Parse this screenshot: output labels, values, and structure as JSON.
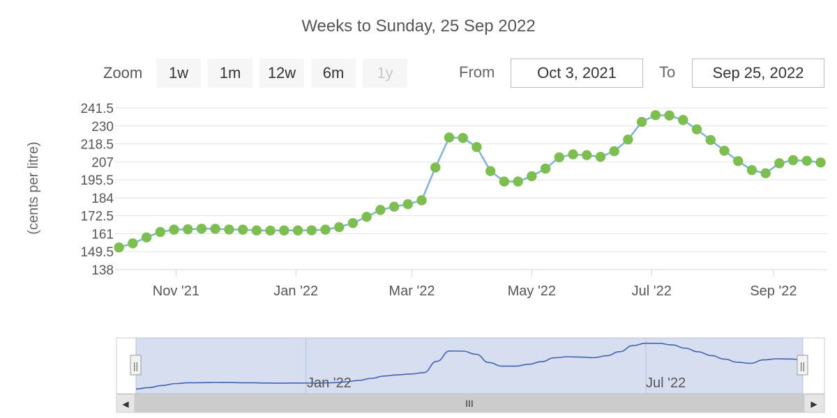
{
  "subtitle": "Weeks to Sunday, 25 Sep 2022",
  "zoom": {
    "label": "Zoom",
    "buttons": [
      {
        "label": "1w",
        "enabled": true
      },
      {
        "label": "1m",
        "enabled": true
      },
      {
        "label": "12w",
        "enabled": true
      },
      {
        "label": "6m",
        "enabled": true
      },
      {
        "label": "1y",
        "enabled": false
      }
    ]
  },
  "range": {
    "from_label": "From",
    "from_value": "Oct 3, 2021",
    "to_label": "To",
    "to_value": "Sep 25, 2022"
  },
  "navigator": {
    "labels": [
      "Jan '22",
      "Jul '22"
    ],
    "scroll_grip": "III",
    "left_arrow": "◀",
    "right_arrow": "▶",
    "handle_glyph": "||"
  },
  "colors": {
    "line": "#7fb2e0",
    "marker": "#7cbf4e",
    "grid": "#e2e2e2",
    "navigator_fill": "#cfd8ec",
    "navigator_line": "#3f63b0"
  },
  "chart_data": {
    "type": "line",
    "ylabel": "(cents per litre)",
    "ylim": [
      138,
      241.5
    ],
    "yticks": [
      138,
      149.5,
      161,
      172.5,
      184,
      195.5,
      207,
      218.5,
      230,
      241.5
    ],
    "xticks": [
      {
        "date": "2021-11-01",
        "label": "Nov '21"
      },
      {
        "date": "2022-01-01",
        "label": "Jan '22"
      },
      {
        "date": "2022-03-01",
        "label": "Mar '22"
      },
      {
        "date": "2022-05-01",
        "label": "May '22"
      },
      {
        "date": "2022-07-01",
        "label": "Jul '22"
      },
      {
        "date": "2022-09-01",
        "label": "Sep '22"
      }
    ],
    "xlim": [
      "2021-10-01",
      "2022-09-28"
    ],
    "grid": true,
    "series": [
      {
        "x": [
          "2021-10-03",
          "2021-10-10",
          "2021-10-17",
          "2021-10-24",
          "2021-10-31",
          "2021-11-07",
          "2021-11-14",
          "2021-11-21",
          "2021-11-28",
          "2021-12-05",
          "2021-12-12",
          "2021-12-19",
          "2021-12-26",
          "2022-01-02",
          "2022-01-09",
          "2022-01-16",
          "2022-01-23",
          "2022-01-30",
          "2022-02-06",
          "2022-02-13",
          "2022-02-20",
          "2022-02-27",
          "2022-03-06",
          "2022-03-13",
          "2022-03-20",
          "2022-03-27",
          "2022-04-03",
          "2022-04-10",
          "2022-04-17",
          "2022-04-24",
          "2022-05-01",
          "2022-05-08",
          "2022-05-15",
          "2022-05-22",
          "2022-05-29",
          "2022-06-05",
          "2022-06-12",
          "2022-06-19",
          "2022-06-26",
          "2022-07-03",
          "2022-07-10",
          "2022-07-17",
          "2022-07-24",
          "2022-07-31",
          "2022-08-07",
          "2022-08-14",
          "2022-08-21",
          "2022-08-28",
          "2022-09-04",
          "2022-09-11",
          "2022-09-18",
          "2022-09-25"
        ],
        "values": [
          152.2,
          154.8,
          158.6,
          162.1,
          163.6,
          163.8,
          164.2,
          164.1,
          163.7,
          163.6,
          163.1,
          163.0,
          163.1,
          163.1,
          163.2,
          163.6,
          165.2,
          167.8,
          171.8,
          176.2,
          178.3,
          179.9,
          182.4,
          203.4,
          222.6,
          222.3,
          216.5,
          201.1,
          194.4,
          194.4,
          197.8,
          202.7,
          209.9,
          211.8,
          211.3,
          210.2,
          213.8,
          221.3,
          232.6,
          236.9,
          236.7,
          233.8,
          227.8,
          221.0,
          214.1,
          207.5,
          201.7,
          199.7,
          206.1,
          208.1,
          207.7,
          206.6
        ]
      }
    ]
  }
}
